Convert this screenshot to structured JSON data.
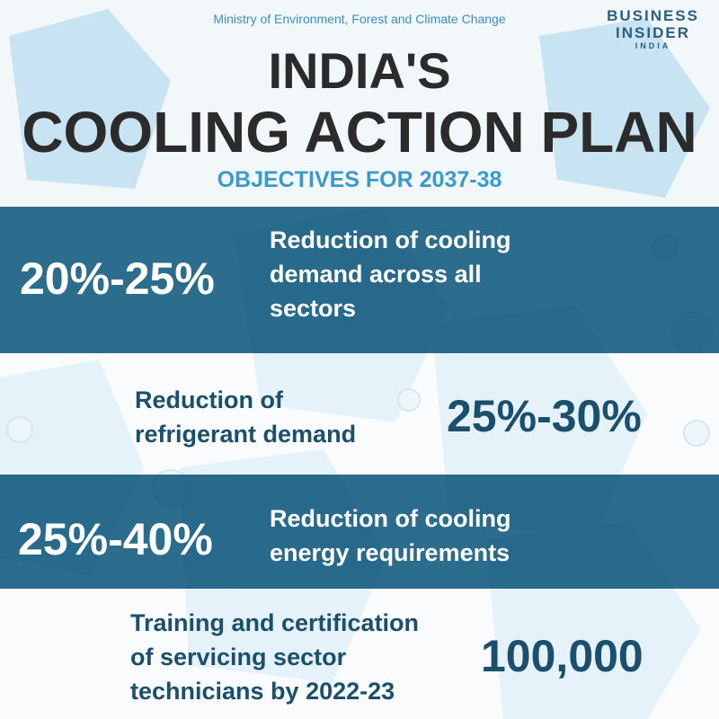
{
  "header": {
    "source": "Ministry of Environment, Forest and Climate Change",
    "logo": [
      "BUSINESS",
      "INSIDER",
      "INDIA"
    ],
    "title_lines": [
      "INDIA'S",
      "COOLING ACTION PLAN"
    ],
    "subtitle": "OBJECTIVES FOR 2037-38"
  },
  "objectives": [
    {
      "figure": "20%-25%",
      "description": [
        "Reduction of cooling",
        "demand across all",
        "sectors"
      ]
    },
    {
      "figure": "25%-30%",
      "description": [
        "Reduction of",
        "refrigerant demand"
      ]
    },
    {
      "figure": "25%-40%",
      "description": [
        "Reduction of cooling",
        "energy requirements"
      ]
    },
    {
      "figure": "100,000",
      "description": [
        "Training and certification",
        "of servicing sector",
        "technicians by 2022-23"
      ]
    }
  ]
}
